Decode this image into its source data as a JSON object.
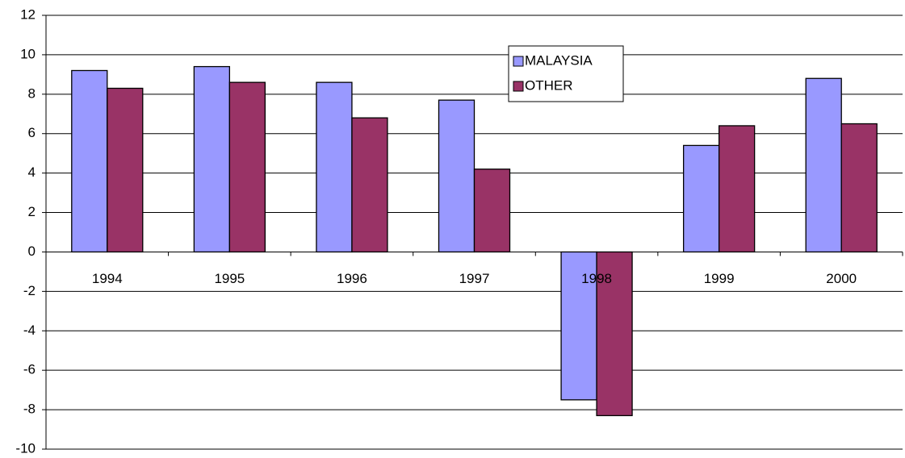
{
  "chart_data": {
    "type": "bar",
    "categories": [
      "1994",
      "1995",
      "1996",
      "1997",
      "1998",
      "1999",
      "2000"
    ],
    "series": [
      {
        "name": "MALAYSIA",
        "color": "#9999ff",
        "values": [
          9.2,
          9.4,
          8.6,
          7.7,
          -7.5,
          5.4,
          8.8
        ]
      },
      {
        "name": "OTHER",
        "color": "#993366",
        "values": [
          8.3,
          8.6,
          6.8,
          4.2,
          -8.3,
          6.4,
          6.5
        ]
      }
    ],
    "ylim": [
      -10,
      12
    ],
    "yticks": [
      -10,
      -8,
      -6,
      -4,
      -2,
      0,
      2,
      4,
      6,
      8,
      10,
      12
    ],
    "grid": true
  }
}
